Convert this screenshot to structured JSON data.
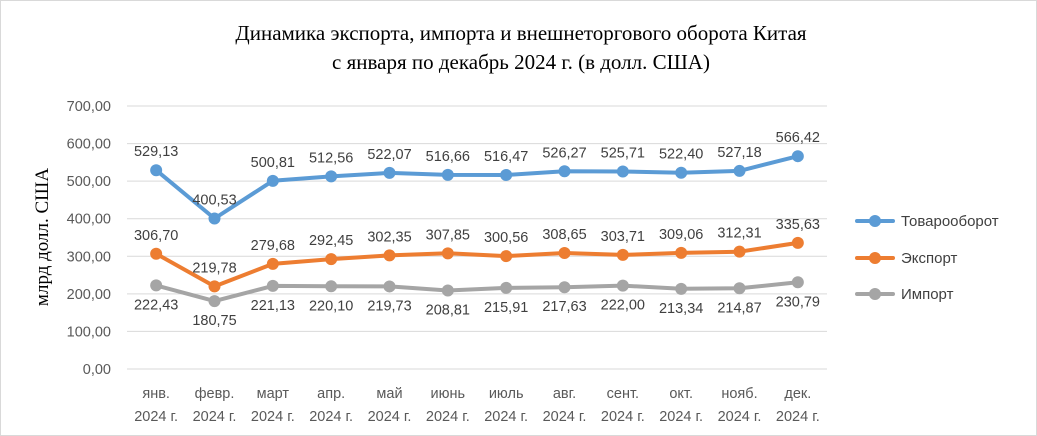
{
  "chart_data": {
    "type": "line",
    "title_line1": "Динамика экспорта, импорта и внешнеторгового оборота Китая",
    "title_line2": "с января по декабрь 2024 г. (в долл. США)",
    "xlabel": "",
    "ylabel": "млрд долл. США",
    "ylim": [
      0,
      700
    ],
    "y_ticks": [
      "0,00",
      "100,00",
      "200,00",
      "300,00",
      "400,00",
      "500,00",
      "600,00",
      "700,00"
    ],
    "categories": [
      [
        "янв.",
        "2024 г."
      ],
      [
        "февр.",
        "2024 г."
      ],
      [
        "март",
        "2024 г."
      ],
      [
        "апр.",
        "2024 г."
      ],
      [
        "май",
        "2024 г."
      ],
      [
        "июнь",
        "2024 г."
      ],
      [
        "июль",
        "2024 г."
      ],
      [
        "авг.",
        "2024 г."
      ],
      [
        "сент.",
        "2024 г."
      ],
      [
        "окт.",
        "2024 г."
      ],
      [
        "нояб.",
        "2024 г."
      ],
      [
        "дек.",
        "2024 г."
      ]
    ],
    "grid": true,
    "legend_position": "right",
    "series": [
      {
        "name": "Товарооборот",
        "color": "#5b9bd5",
        "values": [
          529.13,
          400.53,
          500.81,
          512.56,
          522.07,
          516.66,
          516.47,
          526.27,
          525.71,
          522.4,
          527.18,
          566.42
        ],
        "labels": [
          "529,13",
          "400,53",
          "500,81",
          "512,56",
          "522,07",
          "516,66",
          "516,47",
          "526,27",
          "525,71",
          "522,40",
          "527,18",
          "566,42"
        ],
        "label_position": "above"
      },
      {
        "name": "Экспорт",
        "color": "#ed7d31",
        "values": [
          306.7,
          219.78,
          279.68,
          292.45,
          302.35,
          307.85,
          300.56,
          308.65,
          303.71,
          309.06,
          312.31,
          335.63
        ],
        "labels": [
          "306,70",
          "219,78",
          "279,68",
          "292,45",
          "302,35",
          "307,85",
          "300,56",
          "308,65",
          "303,71",
          "309,06",
          "312,31",
          "335,63"
        ],
        "label_position": "above"
      },
      {
        "name": "Импорт",
        "color": "#a5a5a5",
        "values": [
          222.43,
          180.75,
          221.13,
          220.1,
          219.73,
          208.81,
          215.91,
          217.63,
          222.0,
          213.34,
          214.87,
          230.79
        ],
        "labels": [
          "222,43",
          "180,75",
          "221,13",
          "220,10",
          "219,73",
          "208,81",
          "215,91",
          "217,63",
          "222,00",
          "213,34",
          "214,87",
          "230,79"
        ],
        "label_position": "below"
      }
    ]
  }
}
